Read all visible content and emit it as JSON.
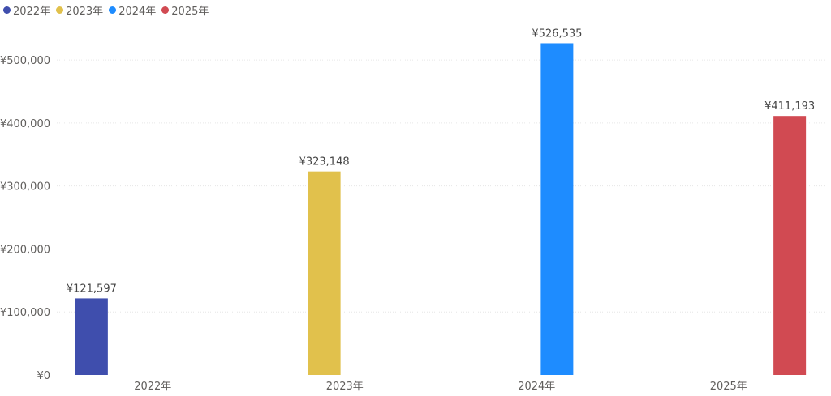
{
  "chart_data": {
    "type": "bar",
    "categories": [
      "2022年",
      "2023年",
      "2024年",
      "2025年"
    ],
    "series": [
      {
        "name": "2022年",
        "color": "#3f4ead",
        "values": [
          121597,
          null,
          null,
          null
        ],
        "labels": [
          "¥121,597",
          "",
          "",
          ""
        ]
      },
      {
        "name": "2023年",
        "color": "#e1c14c",
        "values": [
          null,
          323148,
          null,
          null
        ],
        "labels": [
          "",
          "¥323,148",
          "",
          ""
        ]
      },
      {
        "name": "2024年",
        "color": "#1e8cff",
        "values": [
          null,
          null,
          526535,
          null
        ],
        "labels": [
          "",
          "",
          "¥526,535",
          ""
        ]
      },
      {
        "name": "2025年",
        "color": "#d14a52",
        "values": [
          null,
          null,
          null,
          411193
        ],
        "labels": [
          "",
          "",
          "",
          "¥411,193"
        ]
      }
    ],
    "yticks": [
      0,
      100000,
      200000,
      300000,
      400000,
      500000
    ],
    "ytick_labels": [
      "¥0",
      "¥100,000",
      "¥200,000",
      "¥300,000",
      "¥400,000",
      "¥500,000"
    ],
    "ylim": [
      0,
      540000
    ],
    "title": "",
    "xlabel": "",
    "ylabel": "",
    "legend_position": "top-left",
    "grid": true
  }
}
